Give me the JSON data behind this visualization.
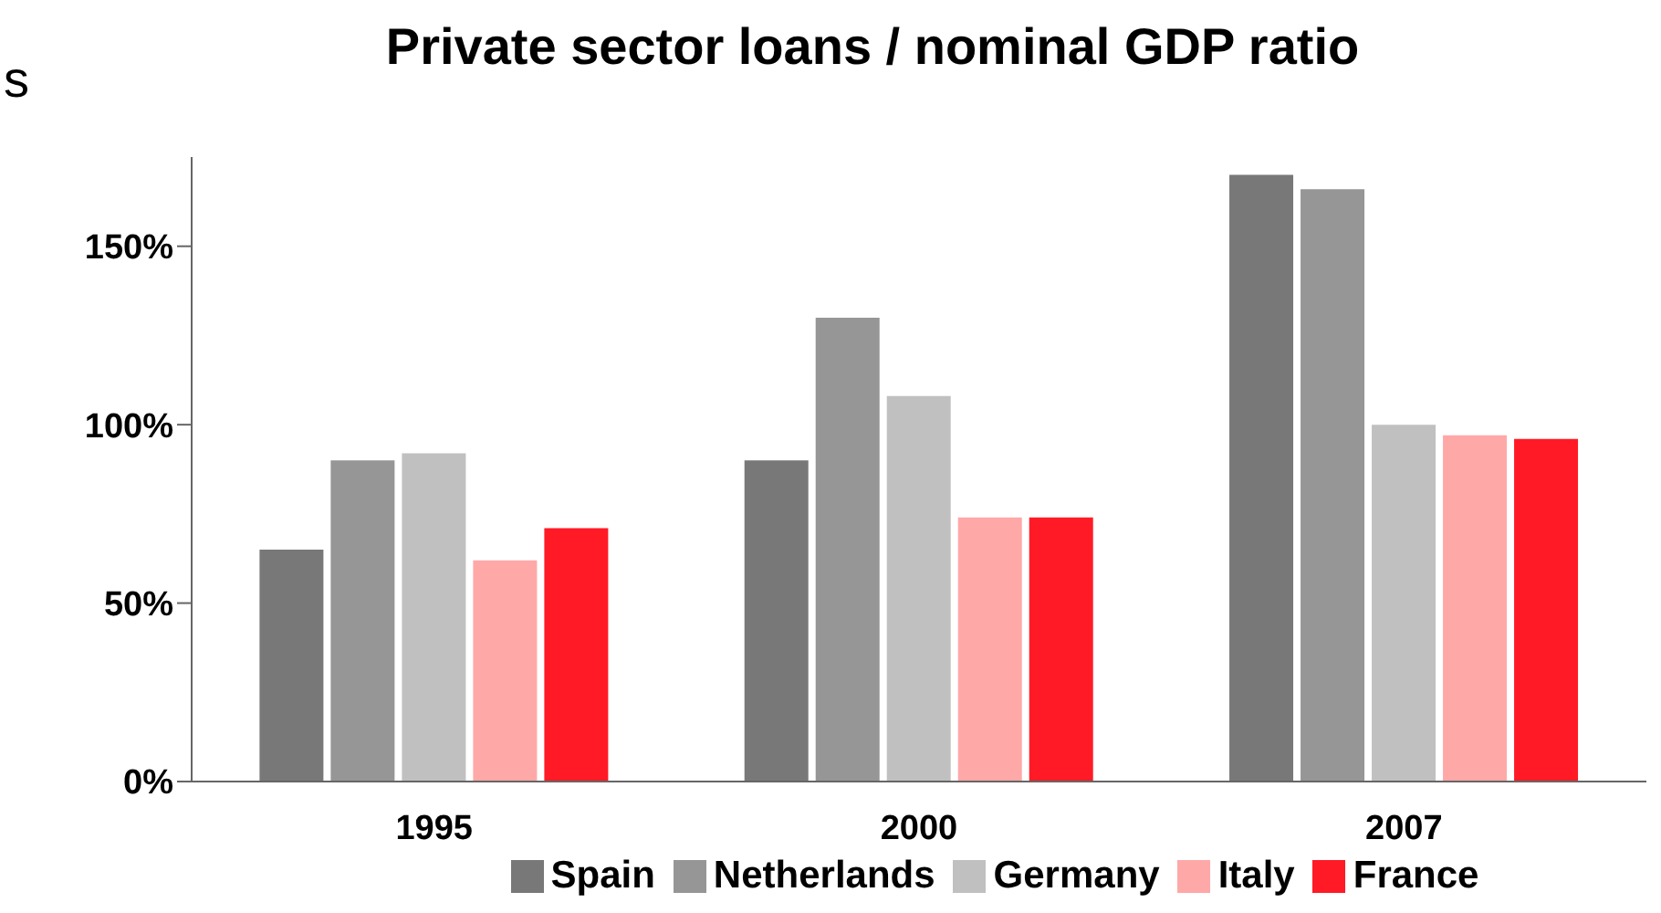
{
  "chart_data": {
    "type": "bar",
    "title": "Private sector loans / nominal GDP ratio",
    "annotations": [
      "s"
    ],
    "categories": [
      "1995",
      "2000",
      "2007"
    ],
    "series": [
      {
        "name": "Spain",
        "color": "#787878",
        "values": [
          65,
          90,
          170
        ]
      },
      {
        "name": "Netherlands",
        "color": "#969696",
        "values": [
          90,
          130,
          166
        ]
      },
      {
        "name": "Germany",
        "color": "#c0c0c0",
        "values": [
          92,
          108,
          100
        ]
      },
      {
        "name": "Italy",
        "color": "#ffa8a8",
        "values": [
          62,
          74,
          97
        ]
      },
      {
        "name": "France",
        "color": "#ff1a26",
        "values": [
          71,
          74,
          96
        ]
      }
    ],
    "ylim": [
      0,
      175
    ],
    "yticks": [
      {
        "value": 0,
        "label": "0%"
      },
      {
        "value": 50,
        "label": "50%"
      },
      {
        "value": 100,
        "label": "100%"
      },
      {
        "value": 150,
        "label": "150%"
      }
    ],
    "grid": false,
    "legend": "bottom"
  }
}
